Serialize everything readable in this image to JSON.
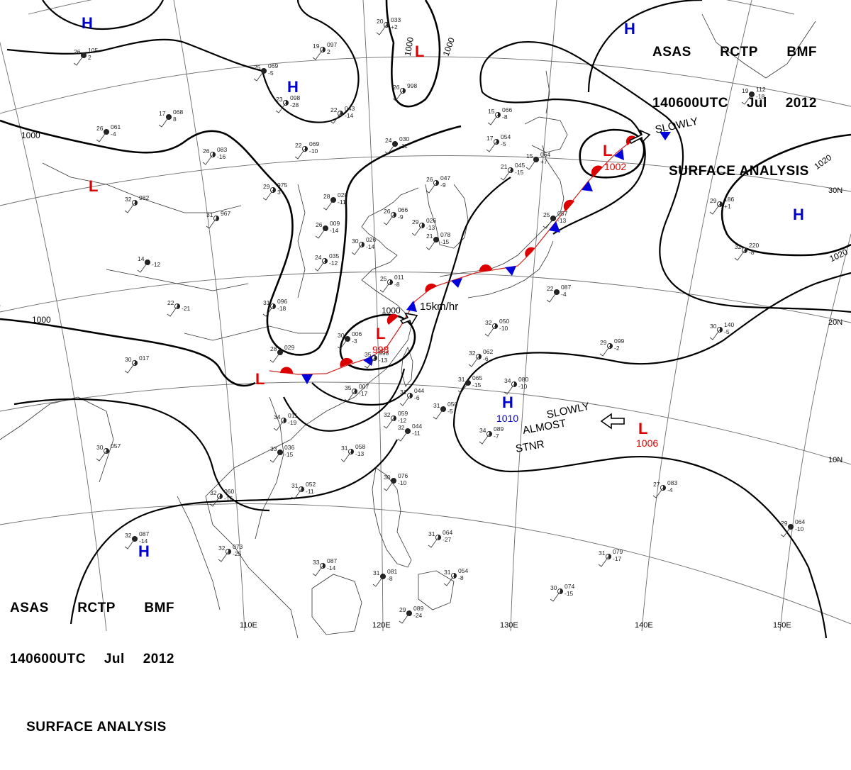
{
  "header": {
    "source": "ASAS",
    "station": "RCTP",
    "office": "BMF",
    "time": "140600UTC",
    "month": "Jul",
    "year": "2012",
    "product": "SURFACE ANALYSIS"
  },
  "longitude_labels": [
    "110E",
    "120E",
    "130E",
    "140E",
    "150E"
  ],
  "latitude_labels": [
    "30N",
    "20N",
    "10N"
  ],
  "isobar_labels": [
    {
      "id": "isobar-1000-nw",
      "text": "1000"
    },
    {
      "id": "isobar-1000-w",
      "text": "1000"
    },
    {
      "id": "isobar-1000-n1",
      "text": "1000"
    },
    {
      "id": "isobar-1000-n2",
      "text": "1000"
    },
    {
      "id": "isobar-1000-c",
      "text": "1000"
    },
    {
      "id": "isobar-1020-e1",
      "text": "1020"
    },
    {
      "id": "isobar-1020-e2",
      "text": "1020"
    }
  ],
  "pressure_centers": [
    {
      "id": "high-nw",
      "type": "H",
      "color": "#0000cc",
      "value": ""
    },
    {
      "id": "high-n",
      "type": "H",
      "color": "#0000cc",
      "value": ""
    },
    {
      "id": "high-ne",
      "type": "H",
      "color": "#0000cc",
      "value": ""
    },
    {
      "id": "high-e",
      "type": "H",
      "color": "#0000cc",
      "value": ""
    },
    {
      "id": "high-sw",
      "type": "H",
      "color": "#0000cc",
      "value": ""
    },
    {
      "id": "high-philippine-sea",
      "type": "H",
      "color": "#0000cc",
      "value": "1010"
    },
    {
      "id": "low-n",
      "type": "L",
      "color": "#dd0000",
      "value": ""
    },
    {
      "id": "low-w",
      "type": "L",
      "color": "#dd0000",
      "value": ""
    },
    {
      "id": "low-sw",
      "type": "L",
      "color": "#dd0000",
      "value": ""
    },
    {
      "id": "low-east-china-sea",
      "type": "L",
      "color": "#dd0000",
      "value": "998"
    },
    {
      "id": "low-japan",
      "type": "L",
      "color": "#dd0000",
      "value": "1002"
    },
    {
      "id": "low-pacific",
      "type": "L",
      "color": "#dd0000",
      "value": "1006"
    }
  ],
  "annotations": {
    "motion_ne": "SLOWLY",
    "front_speed": "15km/hr",
    "motion_se": "SLOWLY",
    "almost": "ALMOST",
    "stnr": "STNR"
  },
  "station_reports": [
    {
      "t": "26",
      "p": "105",
      "d": "2"
    },
    {
      "t": "19",
      "p": "097",
      "d": "2"
    },
    {
      "t": "20",
      "p": "033",
      "d": "+2"
    },
    {
      "t": "25",
      "p": "069",
      "d": "-5"
    },
    {
      "t": "23",
      "p": "098",
      "d": "-28"
    },
    {
      "t": "26",
      "p": "998",
      "d": ""
    },
    {
      "t": "17",
      "p": "068",
      "d": "8"
    },
    {
      "t": "22",
      "p": "043",
      "d": "-14"
    },
    {
      "t": "15",
      "p": "066",
      "d": "-8"
    },
    {
      "t": "26",
      "p": "061",
      "d": "-4"
    },
    {
      "t": "26",
      "p": "083",
      "d": "-16"
    },
    {
      "t": "22",
      "p": "069",
      "d": "-10"
    },
    {
      "t": "24",
      "p": "030",
      "d": "-11"
    },
    {
      "t": "17",
      "p": "054",
      "d": "-5"
    },
    {
      "t": "21",
      "p": "045",
      "d": "-15"
    },
    {
      "t": "15",
      "p": "064",
      "d": "+7"
    },
    {
      "t": "32",
      "p": "982",
      "d": ""
    },
    {
      "t": "29",
      "p": "975",
      "d": "3"
    },
    {
      "t": "28",
      "p": "028",
      "d": "-11"
    },
    {
      "t": "26",
      "p": "047",
      "d": "-9"
    },
    {
      "t": "31",
      "p": "967",
      "d": ""
    },
    {
      "t": "26",
      "p": "009",
      "d": "-14"
    },
    {
      "t": "26",
      "p": "066",
      "d": "-9"
    },
    {
      "t": "29",
      "p": "026",
      "d": "-13"
    },
    {
      "t": "25",
      "p": "057",
      "d": "-13"
    },
    {
      "t": "29",
      "p": "186",
      "d": "+1"
    },
    {
      "t": "24",
      "p": "035",
      "d": "-12"
    },
    {
      "t": "21",
      "p": "078",
      "d": "-15"
    },
    {
      "t": "30",
      "p": "026",
      "d": "-14"
    },
    {
      "t": "25",
      "p": "011",
      "d": "-8"
    },
    {
      "t": "14",
      "p": "",
      "d": "-12"
    },
    {
      "t": "22",
      "p": "",
      "d": "-21"
    },
    {
      "t": "31",
      "p": "096",
      "d": "-18"
    },
    {
      "t": "30",
      "p": "006",
      "d": "-3"
    },
    {
      "t": "35",
      "p": "998",
      "d": "-13"
    },
    {
      "t": "32",
      "p": "050",
      "d": "-10"
    },
    {
      "t": "22",
      "p": "087",
      "d": "-4"
    },
    {
      "t": "29",
      "p": "099",
      "d": "-2"
    },
    {
      "t": "30",
      "p": "017",
      "d": ""
    },
    {
      "t": "28",
      "p": "029",
      "d": ""
    },
    {
      "t": "35",
      "p": "007",
      "d": "-17"
    },
    {
      "t": "32",
      "p": "062",
      "d": "-6"
    },
    {
      "t": "31",
      "p": "065",
      "d": "-15"
    },
    {
      "t": "34",
      "p": "080",
      "d": "-10"
    },
    {
      "t": "31",
      "p": "044",
      "d": "-6"
    },
    {
      "t": "31",
      "p": "050",
      "d": "-5"
    },
    {
      "t": "34",
      "p": "011",
      "d": "-19"
    },
    {
      "t": "32",
      "p": "059",
      "d": "-12"
    },
    {
      "t": "32",
      "p": "044",
      "d": "-11"
    },
    {
      "t": "34",
      "p": "089",
      "d": "-7"
    },
    {
      "t": "30",
      "p": "057",
      "d": ""
    },
    {
      "t": "33",
      "p": "036",
      "d": "-15"
    },
    {
      "t": "31",
      "p": "058",
      "d": "-13"
    },
    {
      "t": "31",
      "p": "052",
      "d": "-11"
    },
    {
      "t": "30",
      "p": "076",
      "d": "-10"
    },
    {
      "t": "32",
      "p": "060",
      "d": "-16"
    },
    {
      "t": "27",
      "p": "083",
      "d": "-4"
    },
    {
      "t": "32",
      "p": "087",
      "d": "-14"
    },
    {
      "t": "32",
      "p": "073",
      "d": "-25"
    },
    {
      "t": "33",
      "p": "087",
      "d": "-14"
    },
    {
      "t": "31",
      "p": "081",
      "d": "-8"
    },
    {
      "t": "31",
      "p": "064",
      "d": "-27"
    },
    {
      "t": "31",
      "p": "054",
      "d": "-8"
    },
    {
      "t": "29",
      "p": "064",
      "d": "-10"
    },
    {
      "t": "31",
      "p": "079",
      "d": "-17"
    },
    {
      "t": "30",
      "p": "074",
      "d": "-15"
    },
    {
      "t": "29",
      "p": "089",
      "d": "-24"
    },
    {
      "t": "32",
      "p": "220",
      "d": "-8"
    },
    {
      "t": "30",
      "p": "140",
      "d": "-5"
    },
    {
      "t": "19",
      "p": "112",
      "d": "-18"
    }
  ],
  "colors": {
    "isobar": "#000000",
    "grid": "#555555",
    "coast": "#333333",
    "warm_front": "#dd0000",
    "cold_front": "#0000dd",
    "high": "#0000cc",
    "low": "#dd0000"
  }
}
